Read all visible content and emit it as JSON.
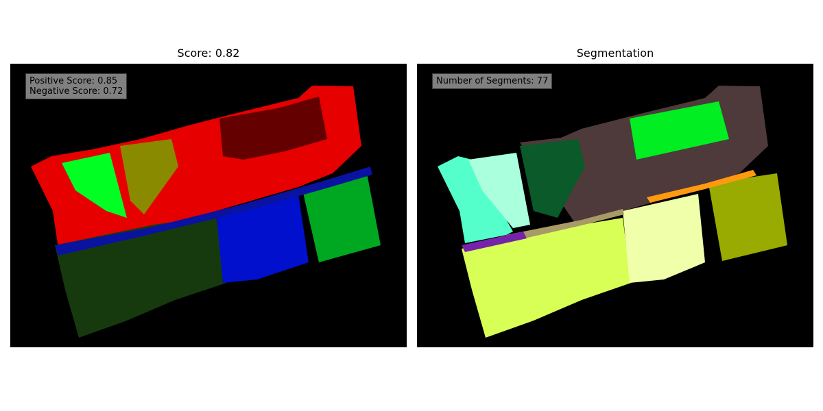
{
  "left_panel": {
    "title": "Score: 0.82",
    "positive_label": "Positive Score: 0.85",
    "negative_label": "Negative Score: 0.72",
    "regions": [
      {
        "name": "red-region",
        "color": "#e60000"
      },
      {
        "name": "dark-red-region",
        "color": "#640000"
      },
      {
        "name": "bright-green-region",
        "color": "#00ff22"
      },
      {
        "name": "olive-region",
        "color": "#8a8a00"
      },
      {
        "name": "dark-green-band",
        "color": "#163a0e"
      },
      {
        "name": "blue-region",
        "color": "#0010cc"
      },
      {
        "name": "navy-region",
        "color": "#0a12a0"
      },
      {
        "name": "green-region",
        "color": "#00a821"
      }
    ]
  },
  "right_panel": {
    "title": "Segmentation",
    "segments_label": "Number of Segments: 77",
    "regions": [
      {
        "name": "aqua-segment",
        "color": "#55ffcc"
      },
      {
        "name": "pale-mint-segment",
        "color": "#aaffdd"
      },
      {
        "name": "forest-green-segment",
        "color": "#0a5a2a"
      },
      {
        "name": "brown-segment",
        "color": "#4e3a3a"
      },
      {
        "name": "lime-segment",
        "color": "#00ee22"
      },
      {
        "name": "yellow-green-segment",
        "color": "#d8ff55"
      },
      {
        "name": "pale-yellow-segment",
        "color": "#f0ffaa"
      },
      {
        "name": "olive-segment",
        "color": "#99aa00"
      },
      {
        "name": "orange-band-segment",
        "color": "#ff9a10"
      },
      {
        "name": "purple-band-segment",
        "color": "#7722aa"
      },
      {
        "name": "tan-band-segment",
        "color": "#a89a66"
      }
    ]
  }
}
